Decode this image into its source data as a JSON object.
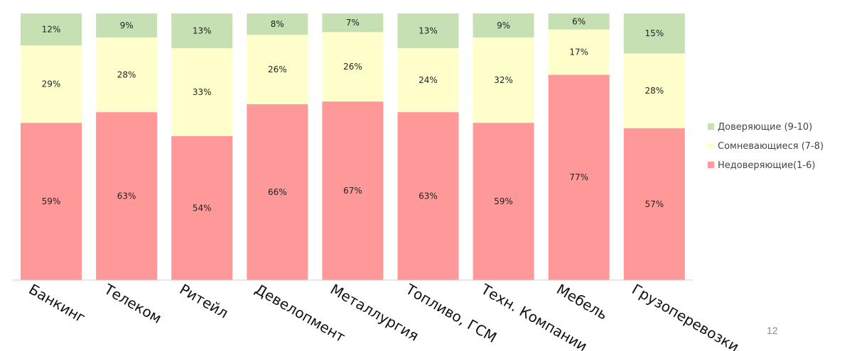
{
  "chart_data": {
    "type": "bar",
    "stacked": true,
    "normalized": true,
    "categories": [
      "Банкинг",
      "Телеком",
      "Ритейл",
      "Девелопмент",
      "Металлургия",
      "Топливо, ГСМ",
      "Техн. Компании",
      "Мебель",
      "Грузоперевозки"
    ],
    "series": [
      {
        "name": "Недоверяющие(1-6)",
        "color": "#ff9999",
        "values": [
          59,
          63,
          54,
          66,
          67,
          63,
          59,
          77,
          57
        ],
        "labels": [
          "59%",
          "63%",
          "54%",
          "66%",
          "67%",
          "63%",
          "59%",
          "77%",
          "57%"
        ]
      },
      {
        "name": "Сомневающиеся (7-8)",
        "color": "#ffffcc",
        "values": [
          29,
          28,
          33,
          26,
          26,
          24,
          32,
          17,
          28
        ],
        "labels": [
          "29%",
          "28%",
          "33%",
          "26%",
          "26%",
          "24%",
          "32%",
          "17%",
          "28%"
        ]
      },
      {
        "name": "Доверяющие (9-10)",
        "color": "#c6e0b4",
        "values": [
          12,
          9,
          13,
          8,
          7,
          13,
          9,
          6,
          15
        ],
        "labels": [
          "12%",
          "9%",
          "13%",
          "8%",
          "7%",
          "13%",
          "9%",
          "6%",
          "15%"
        ]
      }
    ],
    "legend": {
      "position": "right",
      "order": [
        "Доверяющие (9-10)",
        "Сомневающиеся (7-8)",
        "Недоверяющие(1-6)"
      ]
    },
    "grid": false,
    "title": "",
    "xlabel": "",
    "ylabel": ""
  },
  "page_number": "12"
}
